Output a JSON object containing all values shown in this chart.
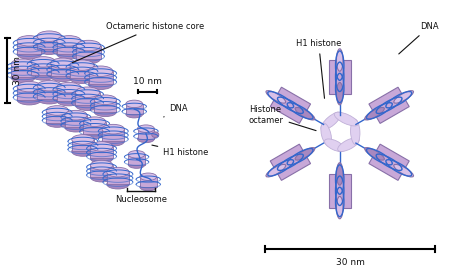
{
  "background_color": "#ffffff",
  "dna_color": "#3366cc",
  "histone_face_color": "#c8a8d8",
  "histone_edge_color": "#8870a8",
  "histone_top_color": "#d8c0e8",
  "histone_dark_color": "#a888c0",
  "linker_color": "#e0d0f0",
  "linker_edge_color": "#c0b0d8",
  "label_color": "#111111",
  "labels": {
    "octameric_histone_core": "Octameric histone core",
    "ten_nm": "10 nm",
    "dna_small": "DNA",
    "h1_histone_small": "H1 histone",
    "nucleosome": "Nucleosome",
    "h1_histone_large": "H1 histone",
    "dna_large": "DNA",
    "histone_octamer": "Histone\noctamer",
    "thirty_nm": "30 nm",
    "thirty_nm_left": "30 nm"
  },
  "fig_width": 4.74,
  "fig_height": 2.7,
  "dpi": 100
}
